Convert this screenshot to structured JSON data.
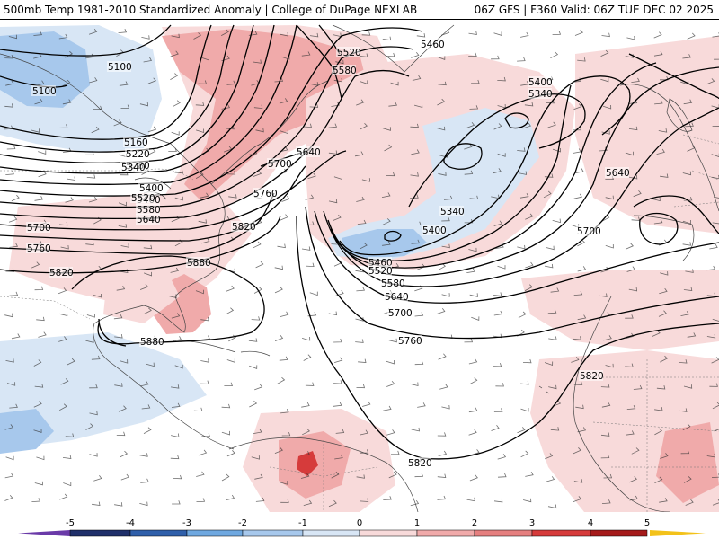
{
  "header": {
    "left_title": "500mb Temp 1981-2010 Standardized Anomaly | College of DuPage NEXLAB",
    "right_title": "06Z GFS | F360 Valid: 06Z TUE DEC 02 2025"
  },
  "colors": {
    "pos1": "#f8dada",
    "pos2": "#f0aaaa",
    "pos3": "#e57f7f",
    "pos4": "#d63b3b",
    "pos5": "#a51a1a",
    "neg1": "#d8e6f5",
    "neg2": "#a7c8ec",
    "neg3": "#6fa8e0",
    "neg4": "#2f5faa",
    "neg5": "#1f2f6a",
    "extreme_pos": "#f3c21a",
    "extreme_neg": "#6a3aa8",
    "contour": "#000000",
    "coast": "#444444"
  },
  "colorbar": {
    "ticks": [
      "-5",
      "-4",
      "-3",
      "-2",
      "-1",
      "0",
      "1",
      "2",
      "3",
      "4",
      "5"
    ]
  },
  "contour_labels": [
    {
      "id": "c5100a",
      "text": "5100"
    },
    {
      "id": "c5100b",
      "text": "5100"
    },
    {
      "id": "c5160",
      "text": "5160"
    },
    {
      "id": "c5220",
      "text": "5220"
    },
    {
      "id": "c5280",
      "text": "5280"
    },
    {
      "id": "c5340w",
      "text": "5340"
    },
    {
      "id": "c5400w",
      "text": "5400"
    },
    {
      "id": "c5460w",
      "text": "5460"
    },
    {
      "id": "c5520w",
      "text": "5520"
    },
    {
      "id": "c5580w",
      "text": "5580"
    },
    {
      "id": "c5640w",
      "text": "5640"
    },
    {
      "id": "c5700w",
      "text": "5700"
    },
    {
      "id": "c5760w",
      "text": "5760"
    },
    {
      "id": "c5820w",
      "text": "5820"
    },
    {
      "id": "c5880a",
      "text": "5880"
    },
    {
      "id": "c5880b",
      "text": "5880"
    },
    {
      "id": "c5520n",
      "text": "5520"
    },
    {
      "id": "c5580n",
      "text": "5580"
    },
    {
      "id": "c5460n",
      "text": "5460"
    },
    {
      "id": "c5700c",
      "text": "5700"
    },
    {
      "id": "c5640c",
      "text": "5640"
    },
    {
      "id": "c5760c",
      "text": "5760"
    },
    {
      "id": "c5820c",
      "text": "5820"
    },
    {
      "id": "c5400t",
      "text": "5400"
    },
    {
      "id": "c5340t",
      "text": "5340"
    },
    {
      "id": "c5340i",
      "text": "5340"
    },
    {
      "id": "c5400i",
      "text": "5400"
    },
    {
      "id": "c5460s",
      "text": "5460"
    },
    {
      "id": "c5520s",
      "text": "5520"
    },
    {
      "id": "c5580s",
      "text": "5580"
    },
    {
      "id": "c5640s",
      "text": "5640"
    },
    {
      "id": "c5700s",
      "text": "5700"
    },
    {
      "id": "c5760s",
      "text": "5760"
    },
    {
      "id": "c5640e",
      "text": "5640"
    },
    {
      "id": "c5700e",
      "text": "5700"
    },
    {
      "id": "c5820e",
      "text": "5820"
    },
    {
      "id": "c5820b",
      "text": "5820"
    }
  ]
}
